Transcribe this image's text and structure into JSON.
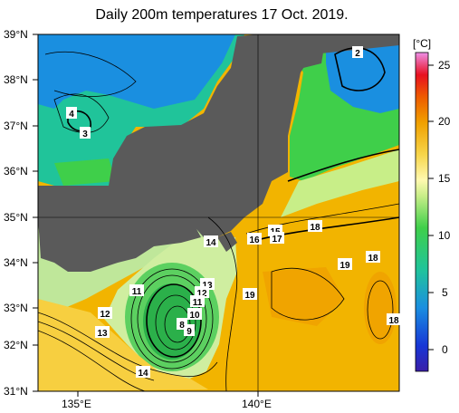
{
  "title": "Daily 200m temperatures 17 Oct. 2019.",
  "lat_labels": [
    "39°N",
    "38°N",
    "37°N",
    "36°N",
    "35°N",
    "34°N",
    "33°N",
    "32°N",
    "31°N"
  ],
  "lon_labels": [
    "135°E",
    "140°E"
  ],
  "colorbar": {
    "unit": "[°C]",
    "ticks": [
      "25",
      "20",
      "15",
      "10",
      "5",
      "0"
    ],
    "min": -2,
    "max": 26
  },
  "contour_labels": [
    "2",
    "4",
    "3",
    "14",
    "16",
    "15",
    "17",
    "18",
    "19",
    "18",
    "11",
    "13",
    "12",
    "11",
    "10",
    "9",
    "8",
    "12",
    "13",
    "19",
    "18",
    "14"
  ],
  "colors": {
    "land": "#5a5a5a",
    "warm": "#f0b800",
    "cool_green": "#2bb04a",
    "cold_blue": "#1a57c8"
  }
}
